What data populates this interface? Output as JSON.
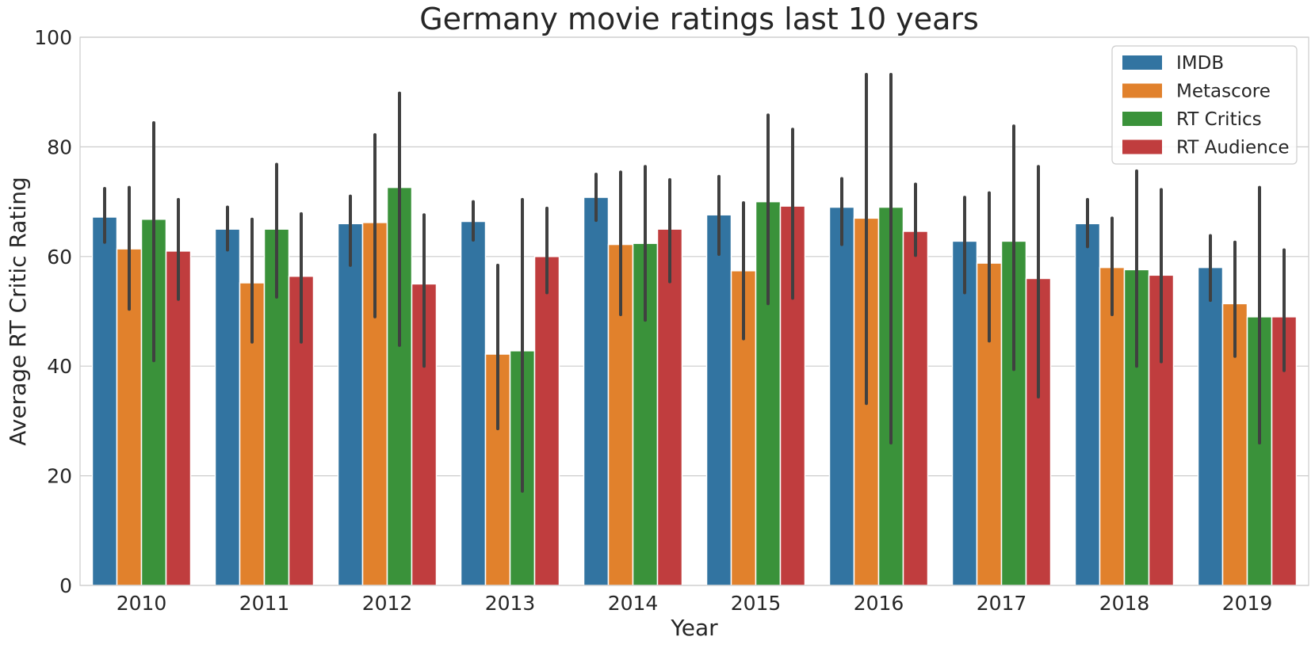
{
  "chart_data": {
    "type": "bar",
    "title": "Germany movie ratings last 10 years",
    "xlabel": "Year",
    "ylabel": "Average RT Critic Rating",
    "ylim": [
      0,
      100
    ],
    "yticks": [
      0,
      20,
      40,
      60,
      80,
      100
    ],
    "grid": true,
    "legend_position": "top-right",
    "categories": [
      "2010",
      "2011",
      "2012",
      "2013",
      "2014",
      "2015",
      "2016",
      "2017",
      "2018",
      "2019"
    ],
    "series": [
      {
        "name": "IMDB",
        "color": "#3274a1",
        "values": [
          67.2,
          65.0,
          66.0,
          66.4,
          70.8,
          67.6,
          69.0,
          62.8,
          66.0,
          58.0
        ],
        "ci": [
          [
            62.6,
            72.4
          ],
          [
            61.2,
            69.0
          ],
          [
            58.4,
            71.0
          ],
          [
            63.0,
            70.0
          ],
          [
            66.6,
            75.0
          ],
          [
            60.4,
            74.6
          ],
          [
            62.2,
            74.2
          ],
          [
            53.4,
            70.8
          ],
          [
            61.8,
            70.4
          ],
          [
            52.0,
            63.8
          ]
        ]
      },
      {
        "name": "Metascore",
        "color": "#e1812c",
        "values": [
          61.4,
          55.2,
          66.2,
          42.2,
          62.2,
          57.4,
          67.0,
          58.8,
          58.0,
          51.4
        ],
        "ci": [
          [
            50.4,
            72.6
          ],
          [
            44.4,
            66.8
          ],
          [
            49.0,
            82.2
          ],
          [
            28.6,
            58.4
          ],
          [
            49.4,
            75.4
          ],
          [
            45.0,
            69.8
          ],
          [
            33.2,
            93.2
          ],
          [
            44.6,
            71.6
          ],
          [
            49.4,
            67.0
          ],
          [
            41.8,
            62.6
          ]
        ]
      },
      {
        "name": "RT Critics",
        "color": "#3a923a",
        "values": [
          66.8,
          65.0,
          72.6,
          42.8,
          62.4,
          70.0,
          69.0,
          62.8,
          57.6,
          49.0
        ],
        "ci": [
          [
            41.0,
            84.4
          ],
          [
            52.6,
            76.8
          ],
          [
            43.8,
            89.8
          ],
          [
            17.2,
            70.4
          ],
          [
            48.4,
            76.4
          ],
          [
            51.4,
            85.8
          ],
          [
            26.0,
            93.2
          ],
          [
            39.4,
            83.8
          ],
          [
            40.0,
            75.6
          ],
          [
            26.0,
            72.6
          ]
        ]
      },
      {
        "name": "RT Audience",
        "color": "#c03d3e",
        "values": [
          61.0,
          56.4,
          55.0,
          60.0,
          65.0,
          69.2,
          64.6,
          56.0,
          56.6,
          49.0
        ],
        "ci": [
          [
            52.2,
            70.4
          ],
          [
            44.4,
            67.8
          ],
          [
            40.0,
            67.6
          ],
          [
            53.4,
            68.8
          ],
          [
            55.4,
            74.0
          ],
          [
            52.4,
            83.2
          ],
          [
            60.2,
            73.2
          ],
          [
            34.4,
            76.4
          ],
          [
            40.8,
            72.2
          ],
          [
            39.2,
            61.2
          ]
        ]
      }
    ]
  }
}
